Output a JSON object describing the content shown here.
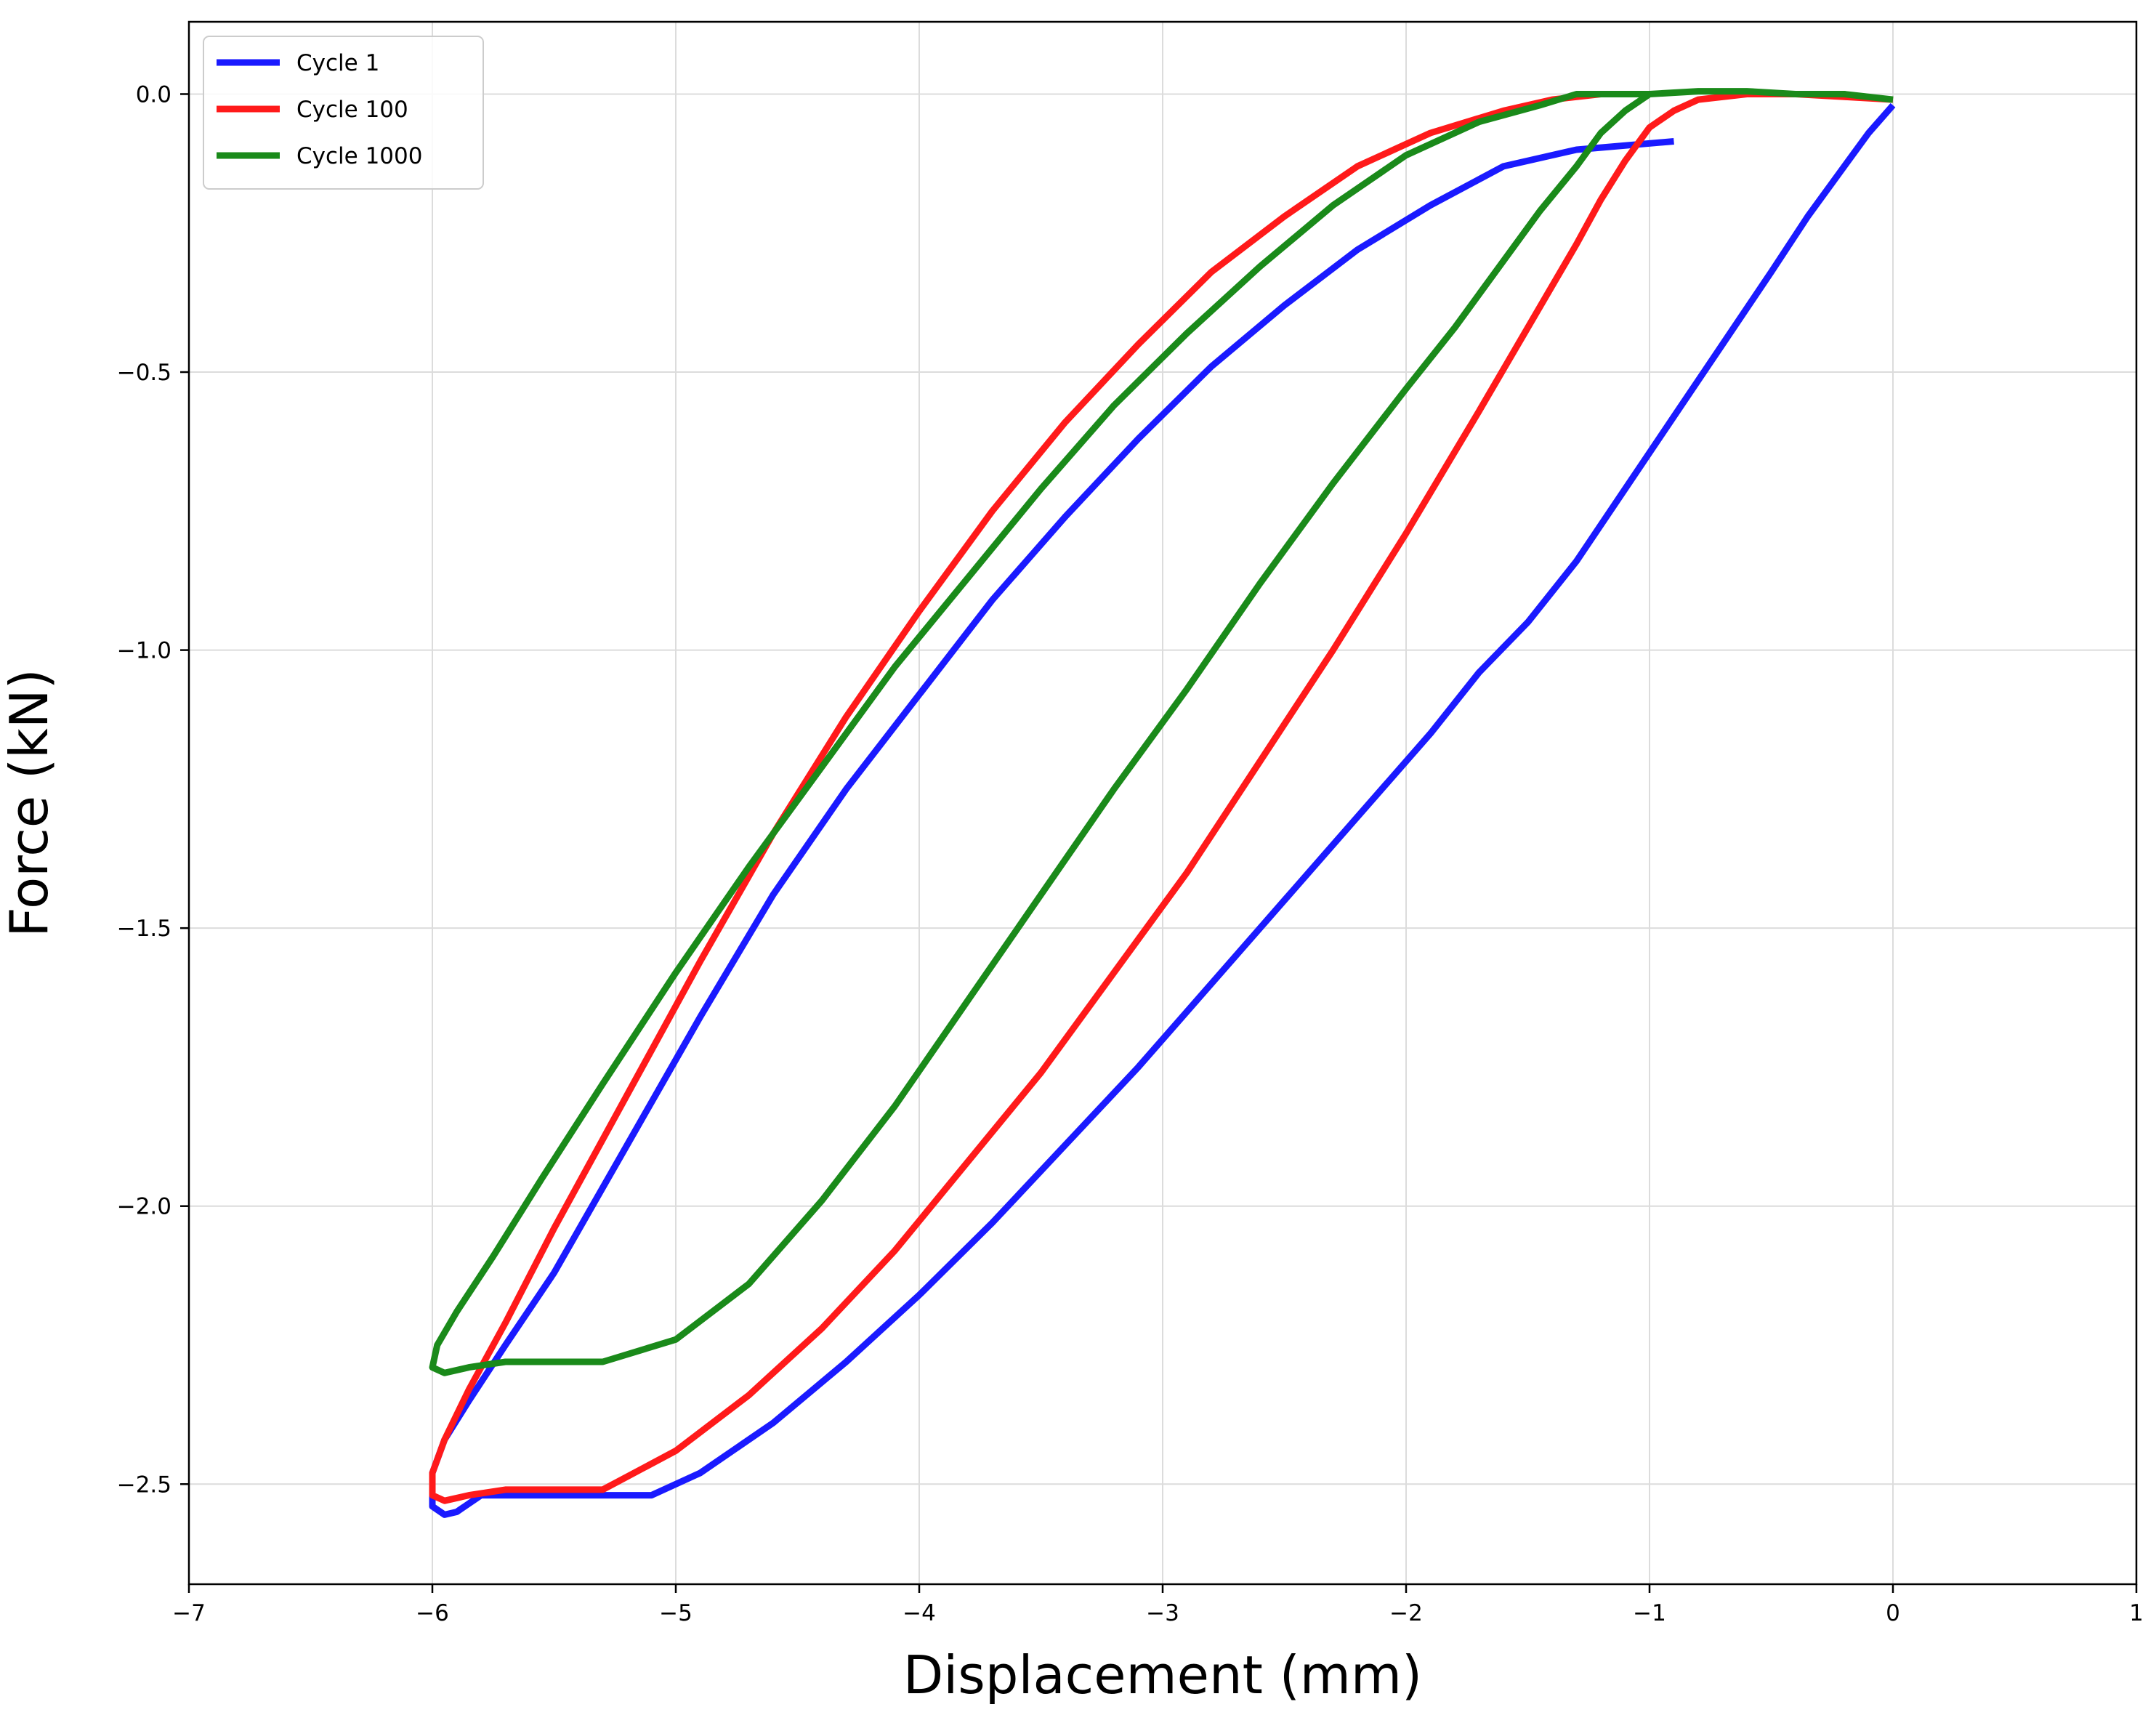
{
  "chart_data": {
    "type": "line",
    "title": "",
    "xlabel": "Displacement (mm)",
    "ylabel": "Force (kN)",
    "xlim": [
      -7,
      1
    ],
    "ylim": [
      -2.68,
      0.13
    ],
    "xticks": [
      -7,
      -6,
      -5,
      -4,
      -3,
      -2,
      -1,
      0,
      1
    ],
    "yticks": [
      -2.5,
      -2.0,
      -1.5,
      -1.0,
      -0.5,
      0.0
    ],
    "xtick_labels": [
      "−7",
      "−6",
      "−5",
      "−4",
      "−3",
      "−2",
      "−1",
      "0",
      "1"
    ],
    "ytick_labels": [
      "−2.5",
      "−2.0",
      "−1.5",
      "−1.0",
      "−0.5",
      "0.0"
    ],
    "grid": true,
    "legend_position": "top-left",
    "series": [
      {
        "name": "Cycle 1",
        "color": "#1a1aff",
        "points": [
          [
            0.0,
            -0.02
          ],
          [
            -0.1,
            -0.07
          ],
          [
            -0.2,
            -0.13
          ],
          [
            -0.35,
            -0.22
          ],
          [
            -0.5,
            -0.32
          ],
          [
            -0.7,
            -0.45
          ],
          [
            -0.9,
            -0.58
          ],
          [
            -1.1,
            -0.71
          ],
          [
            -1.3,
            -0.84
          ],
          [
            -1.5,
            -0.95
          ],
          [
            -1.7,
            -1.04
          ],
          [
            -1.9,
            -1.15
          ],
          [
            -2.1,
            -1.25
          ],
          [
            -2.3,
            -1.35
          ],
          [
            -2.5,
            -1.45
          ],
          [
            -2.8,
            -1.6
          ],
          [
            -3.1,
            -1.75
          ],
          [
            -3.4,
            -1.89
          ],
          [
            -3.7,
            -2.03
          ],
          [
            -4.0,
            -2.16
          ],
          [
            -4.3,
            -2.28
          ],
          [
            -4.6,
            -2.39
          ],
          [
            -4.9,
            -2.48
          ],
          [
            -5.1,
            -2.52
          ],
          [
            -5.8,
            -2.52
          ],
          [
            -5.9,
            -2.55
          ],
          [
            -5.95,
            -2.555
          ],
          [
            -6.0,
            -2.54
          ],
          [
            -6.0,
            -2.48
          ],
          [
            -5.95,
            -2.42
          ],
          [
            -5.85,
            -2.35
          ],
          [
            -5.7,
            -2.25
          ],
          [
            -5.5,
            -2.12
          ],
          [
            -5.2,
            -1.89
          ],
          [
            -4.9,
            -1.66
          ],
          [
            -4.6,
            -1.44
          ],
          [
            -4.3,
            -1.25
          ],
          [
            -4.0,
            -1.08
          ],
          [
            -3.7,
            -0.91
          ],
          [
            -3.4,
            -0.76
          ],
          [
            -3.1,
            -0.62
          ],
          [
            -2.8,
            -0.49
          ],
          [
            -2.5,
            -0.38
          ],
          [
            -2.2,
            -0.28
          ],
          [
            -1.9,
            -0.2
          ],
          [
            -1.6,
            -0.13
          ],
          [
            -1.3,
            -0.1
          ],
          [
            -0.9,
            -0.085
          ]
        ]
      },
      {
        "name": "Cycle 100",
        "color": "#ff1a1a",
        "points": [
          [
            0.0,
            -0.01
          ],
          [
            -0.2,
            -0.005
          ],
          [
            -0.4,
            0.0
          ],
          [
            -0.6,
            0.0
          ],
          [
            -0.8,
            -0.01
          ],
          [
            -0.9,
            -0.03
          ],
          [
            -1.0,
            -0.06
          ],
          [
            -1.1,
            -0.12
          ],
          [
            -1.2,
            -0.19
          ],
          [
            -1.3,
            -0.27
          ],
          [
            -1.5,
            -0.42
          ],
          [
            -1.7,
            -0.57
          ],
          [
            -2.0,
            -0.79
          ],
          [
            -2.3,
            -1.0
          ],
          [
            -2.6,
            -1.2
          ],
          [
            -2.9,
            -1.4
          ],
          [
            -3.2,
            -1.58
          ],
          [
            -3.5,
            -1.76
          ],
          [
            -3.8,
            -1.92
          ],
          [
            -4.1,
            -2.08
          ],
          [
            -4.4,
            -2.22
          ],
          [
            -4.7,
            -2.34
          ],
          [
            -5.0,
            -2.44
          ],
          [
            -5.3,
            -2.51
          ],
          [
            -5.7,
            -2.51
          ],
          [
            -5.85,
            -2.52
          ],
          [
            -5.95,
            -2.53
          ],
          [
            -6.0,
            -2.52
          ],
          [
            -6.0,
            -2.48
          ],
          [
            -5.95,
            -2.42
          ],
          [
            -5.85,
            -2.33
          ],
          [
            -5.7,
            -2.21
          ],
          [
            -5.5,
            -2.04
          ],
          [
            -5.2,
            -1.8
          ],
          [
            -4.9,
            -1.56
          ],
          [
            -4.6,
            -1.33
          ],
          [
            -4.3,
            -1.12
          ],
          [
            -4.0,
            -0.93
          ],
          [
            -3.7,
            -0.75
          ],
          [
            -3.4,
            -0.59
          ],
          [
            -3.1,
            -0.45
          ],
          [
            -2.8,
            -0.32
          ],
          [
            -2.5,
            -0.22
          ],
          [
            -2.2,
            -0.13
          ],
          [
            -1.9,
            -0.07
          ],
          [
            -1.6,
            -0.03
          ],
          [
            -1.4,
            -0.01
          ],
          [
            -1.2,
            0.0
          ],
          [
            -1.0,
            0.0
          ]
        ]
      },
      {
        "name": "Cycle 1000",
        "color": "#1a8a1a",
        "points": [
          [
            0.0,
            -0.01
          ],
          [
            -0.2,
            0.0
          ],
          [
            -0.4,
            0.0
          ],
          [
            -0.6,
            0.005
          ],
          [
            -0.8,
            0.005
          ],
          [
            -1.0,
            0.0
          ],
          [
            -1.1,
            -0.03
          ],
          [
            -1.2,
            -0.07
          ],
          [
            -1.3,
            -0.13
          ],
          [
            -1.45,
            -0.21
          ],
          [
            -1.6,
            -0.3
          ],
          [
            -1.8,
            -0.42
          ],
          [
            -2.0,
            -0.53
          ],
          [
            -2.3,
            -0.7
          ],
          [
            -2.6,
            -0.88
          ],
          [
            -2.9,
            -1.07
          ],
          [
            -3.2,
            -1.25
          ],
          [
            -3.5,
            -1.44
          ],
          [
            -3.8,
            -1.63
          ],
          [
            -4.1,
            -1.82
          ],
          [
            -4.4,
            -1.99
          ],
          [
            -4.7,
            -2.14
          ],
          [
            -5.0,
            -2.24
          ],
          [
            -5.3,
            -2.28
          ],
          [
            -5.7,
            -2.28
          ],
          [
            -5.85,
            -2.29
          ],
          [
            -5.95,
            -2.3
          ],
          [
            -6.0,
            -2.29
          ],
          [
            -5.98,
            -2.25
          ],
          [
            -5.9,
            -2.19
          ],
          [
            -5.75,
            -2.09
          ],
          [
            -5.55,
            -1.95
          ],
          [
            -5.3,
            -1.78
          ],
          [
            -5.0,
            -1.58
          ],
          [
            -4.7,
            -1.39
          ],
          [
            -4.4,
            -1.21
          ],
          [
            -4.1,
            -1.03
          ],
          [
            -3.8,
            -0.87
          ],
          [
            -3.5,
            -0.71
          ],
          [
            -3.2,
            -0.56
          ],
          [
            -2.9,
            -0.43
          ],
          [
            -2.6,
            -0.31
          ],
          [
            -2.3,
            -0.2
          ],
          [
            -2.0,
            -0.11
          ],
          [
            -1.7,
            -0.05
          ],
          [
            -1.45,
            -0.02
          ],
          [
            -1.3,
            0.0
          ],
          [
            -1.2,
            0.0
          ],
          [
            -1.0,
            0.0
          ]
        ]
      }
    ]
  }
}
